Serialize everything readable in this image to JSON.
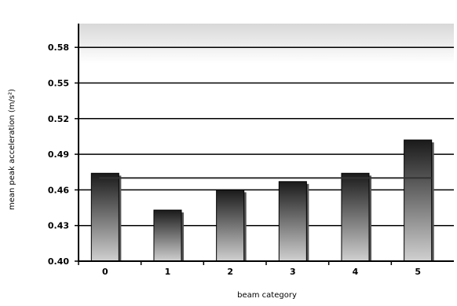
{
  "chart_data": {
    "type": "bar",
    "title": "",
    "xlabel": "beam category",
    "ylabel": "mean peak acceleration (m/s²)",
    "categories": [
      "0",
      "1",
      "2",
      "3",
      "4",
      "5"
    ],
    "series": [
      {
        "values": [
          0.474,
          0.443,
          0.46,
          0.467,
          0.474,
          0.502
        ]
      }
    ],
    "reference_line": {
      "value": 0.47
    },
    "ylim": [
      0.4,
      0.6
    ],
    "yticks": [
      0.4,
      0.43,
      0.46,
      0.49,
      0.52,
      0.55,
      0.58
    ],
    "ytick_labels": [
      "0.40",
      "0.43",
      "0.46",
      "0.49",
      "0.52",
      "0.55",
      "0.58"
    ],
    "grid": true,
    "legend": "none"
  },
  "colors": {
    "bar_top": "#1a1a1a",
    "bar_bottom": "#d0d0d0",
    "plot_top_band": "#d8d8d8",
    "gridline": "#000000",
    "reference_line": "#333333"
  }
}
